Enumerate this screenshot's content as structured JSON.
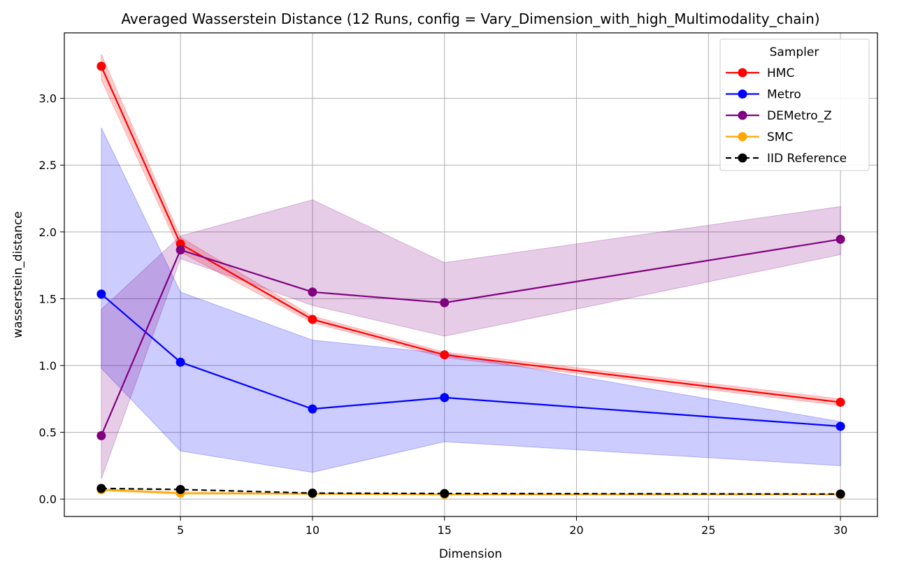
{
  "chart_data": {
    "type": "line",
    "title": "Averaged Wasserstein Distance (12 Runs, config = Vary_Dimension_with_high_Multimodality_chain)",
    "xlabel": "Dimension",
    "ylabel": "wasserstein_distance",
    "x": [
      2,
      5,
      10,
      15,
      30
    ],
    "xlim": [
      0.6,
      31.4
    ],
    "ylim": [
      -0.13,
      3.49
    ],
    "xticks": [
      "5",
      "10",
      "15",
      "20",
      "25",
      "30"
    ],
    "yticks": [
      "0.0",
      "0.5",
      "1.0",
      "1.5",
      "2.0",
      "2.5",
      "3.0"
    ],
    "grid": true,
    "legend": {
      "title": "Sampler",
      "position": "top-right"
    },
    "series": [
      {
        "name": "HMC",
        "color": "#ff0000",
        "dashed": false,
        "values": [
          3.24,
          1.91,
          1.345,
          1.08,
          0.725
        ],
        "lower": [
          3.14,
          1.85,
          1.32,
          1.06,
          0.7
        ],
        "upper": [
          3.33,
          1.96,
          1.37,
          1.1,
          0.75
        ]
      },
      {
        "name": "Metro",
        "color": "#0000ff",
        "dashed": false,
        "values": [
          1.535,
          1.025,
          0.675,
          0.76,
          0.545
        ],
        "lower": [
          0.98,
          0.36,
          0.2,
          0.43,
          0.25
        ],
        "upper": [
          2.78,
          1.55,
          1.19,
          1.09,
          0.58
        ]
      },
      {
        "name": "DEMetro_Z",
        "color": "#800080",
        "dashed": false,
        "values": [
          0.475,
          1.865,
          1.55,
          1.47,
          1.945
        ],
        "lower": [
          0.15,
          1.8,
          1.45,
          1.22,
          1.83
        ],
        "upper": [
          1.42,
          1.97,
          2.24,
          1.77,
          2.19
        ]
      },
      {
        "name": "SMC",
        "color": "#ffa500",
        "dashed": false,
        "values": [
          0.07,
          0.045,
          0.04,
          0.035,
          0.035
        ],
        "lower": [
          0.06,
          0.035,
          0.035,
          0.03,
          0.03
        ],
        "upper": [
          0.08,
          0.055,
          0.045,
          0.04,
          0.04
        ]
      },
      {
        "name": "IID Reference",
        "color": "#000000",
        "dashed": true,
        "values": [
          0.08,
          0.072,
          0.045,
          0.042,
          0.038
        ]
      }
    ]
  }
}
